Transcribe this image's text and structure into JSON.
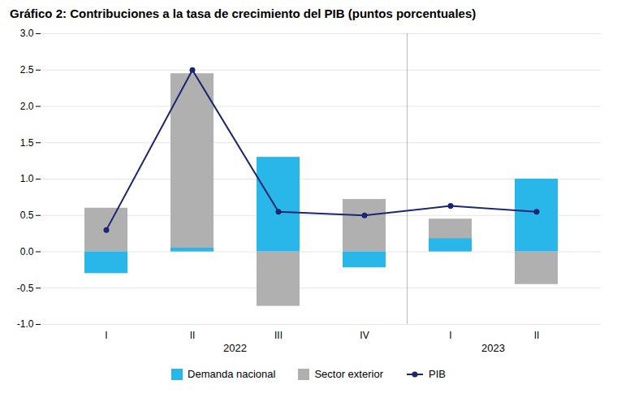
{
  "chart_data": {
    "type": "bar",
    "title": "Gráfico 2: Contribuciones a la tasa de crecimiento del PIB (puntos porcentuales)",
    "categories": [
      "I",
      "II",
      "III",
      "IV",
      "I",
      "II"
    ],
    "groups": [
      "2022",
      "2022",
      "2022",
      "2022",
      "2023",
      "2023"
    ],
    "series": [
      {
        "name": "Demanda nacional",
        "type": "bar",
        "color": "#29b6e8",
        "values": [
          -0.3,
          0.05,
          1.3,
          -0.22,
          0.18,
          1.0
        ]
      },
      {
        "name": "Sector exterior",
        "type": "bar",
        "color": "#b0b0b0",
        "values": [
          0.6,
          2.45,
          -0.75,
          0.72,
          0.45,
          -0.45
        ]
      },
      {
        "name": "PIB",
        "type": "line",
        "color": "#1c2670",
        "marker": "circle",
        "values": [
          0.3,
          2.5,
          0.55,
          0.5,
          0.63,
          0.55
        ]
      }
    ],
    "ylim": [
      -1.0,
      3.0
    ],
    "yticks": [
      {
        "value": -1.0,
        "label": "-1.0"
      },
      -0.5,
      {
        "value": 0.0,
        "label": "0.0"
      },
      0.5,
      {
        "value": 1.0,
        "label": "1.0"
      },
      1.5,
      {
        "value": 2.0,
        "label": "2.0"
      },
      2.5,
      {
        "value": 3.0,
        "label": "3.0"
      }
    ],
    "grid": true,
    "legend": "bottom"
  }
}
